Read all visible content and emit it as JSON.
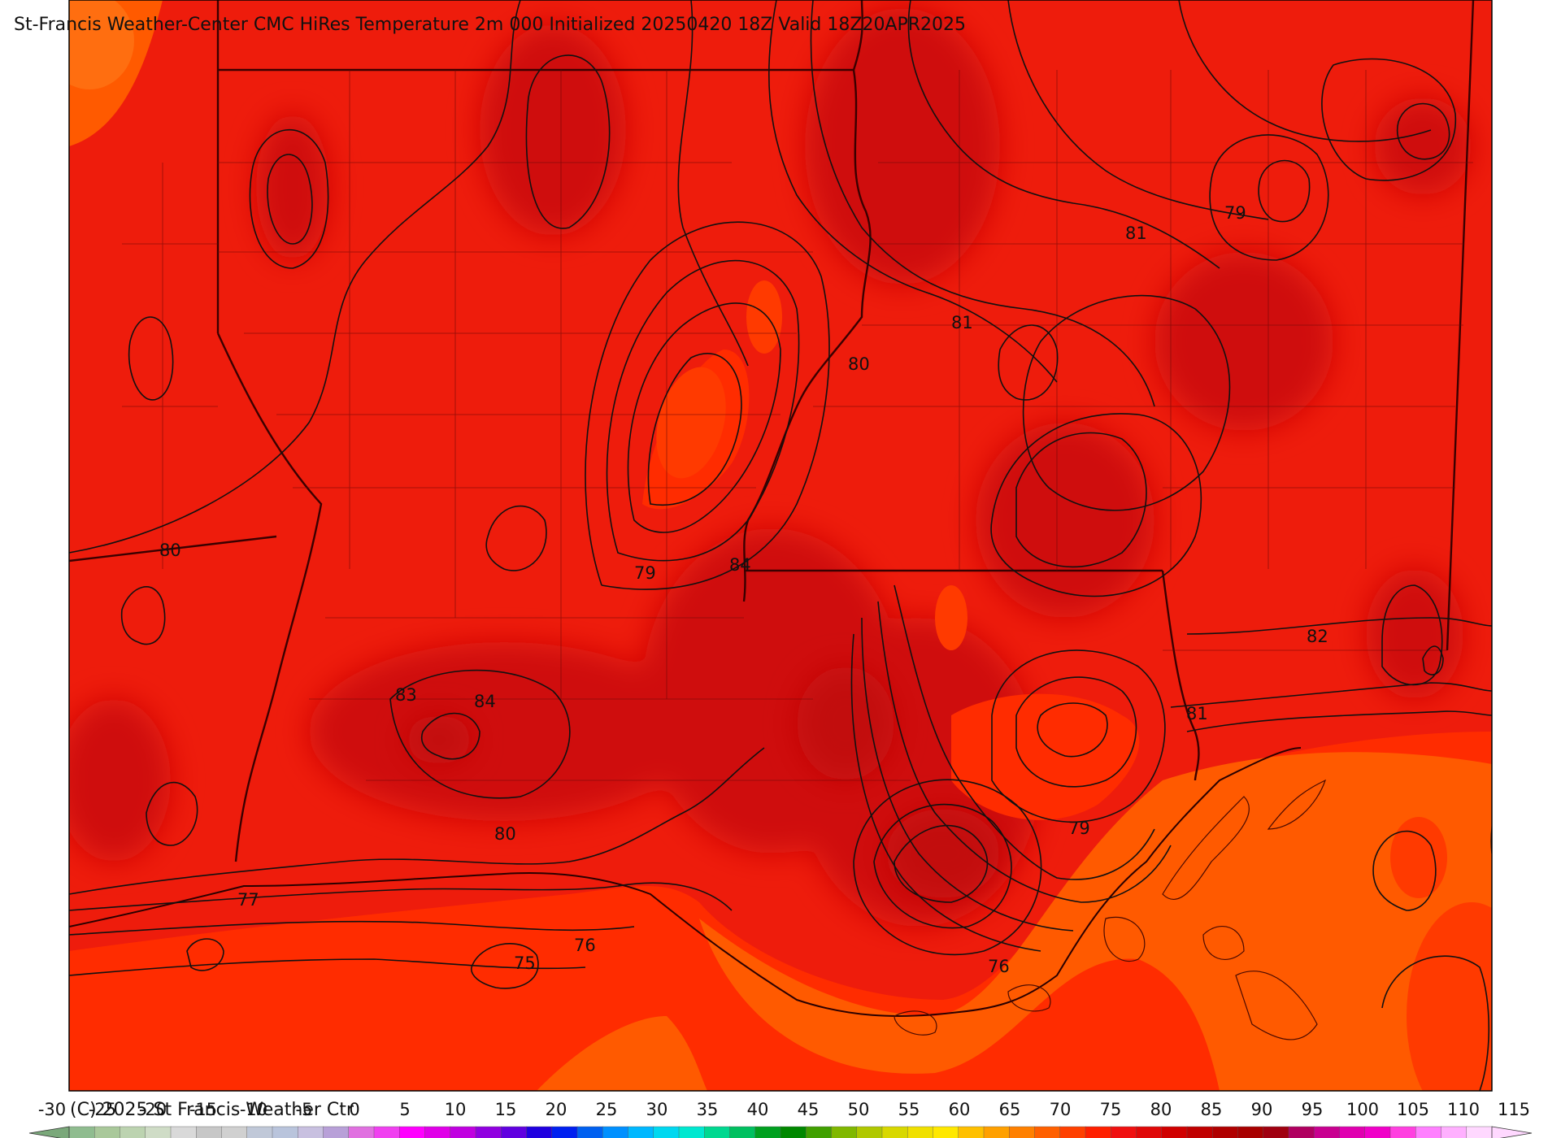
{
  "header": {
    "title": "St-Francis Weather-Center CMC HiRes Temperature 2m  000 Initialized 20250420 18Z Valid 18Z20APR2025"
  },
  "footer": {
    "copyright": "(C) 2025 St Francis Weather Ctr"
  },
  "colors": {
    "base_red": "#ee1c0c",
    "dark_red": "#cf0a0a",
    "darker_red": "#c20808",
    "orange_red": "#ff2c00",
    "orange": "#ff5a00",
    "light_orange": "#ff6e10",
    "contour": "#111111",
    "boundary": "#3a0000"
  },
  "contour_labels": [
    {
      "text": "80"
    },
    {
      "text": "79"
    },
    {
      "text": "84"
    },
    {
      "text": "83"
    },
    {
      "text": "84"
    },
    {
      "text": "80"
    },
    {
      "text": "77"
    },
    {
      "text": "76"
    },
    {
      "text": "75"
    },
    {
      "text": "76"
    },
    {
      "text": "79"
    },
    {
      "text": "81"
    },
    {
      "text": "82"
    },
    {
      "text": "81"
    },
    {
      "text": "80"
    },
    {
      "text": "79"
    },
    {
      "text": "81"
    },
    {
      "text": "80"
    }
  ],
  "colorbar": {
    "ticks": [
      "-30",
      "-25",
      "-20",
      "-15",
      "-10",
      "-5",
      "0",
      "5",
      "10",
      "15",
      "20",
      "25",
      "30",
      "35",
      "40",
      "45",
      "50",
      "55",
      "60",
      "65",
      "70",
      "75",
      "80",
      "85",
      "90",
      "95",
      "100",
      "105",
      "110",
      "115"
    ],
    "colors": [
      "#8fbc8f",
      "#a9c89a",
      "#bcd3b0",
      "#cfdcc6",
      "#d9d9d9",
      "#c7c7c7",
      "#d0d0d0",
      "#c0c8d8",
      "#b9c4dc",
      "#c8c0e0",
      "#b8a0d8",
      "#e070e0",
      "#f040f0",
      "#ff00ff",
      "#e000e8",
      "#c000e0",
      "#9000e0",
      "#6000e0",
      "#2000e0",
      "#0020f0",
      "#0060f0",
      "#0090ff",
      "#00b8ff",
      "#00d8f0",
      "#00e8d0",
      "#00d890",
      "#00c060",
      "#00a020",
      "#008800",
      "#40a000",
      "#80b800",
      "#b0c800",
      "#d8d800",
      "#f0e000",
      "#ffe800",
      "#ffc000",
      "#ffa000",
      "#ff8000",
      "#ff6000",
      "#ff4000",
      "#ff2000",
      "#f01010",
      "#e00808",
      "#d00000",
      "#c00000",
      "#b00000",
      "#a80000",
      "#a00010",
      "#b00060",
      "#c80090",
      "#e000b0",
      "#f000c8",
      "#ff40e0",
      "#ff80ff",
      "#ffb0ff",
      "#ffd8ff"
    ]
  }
}
